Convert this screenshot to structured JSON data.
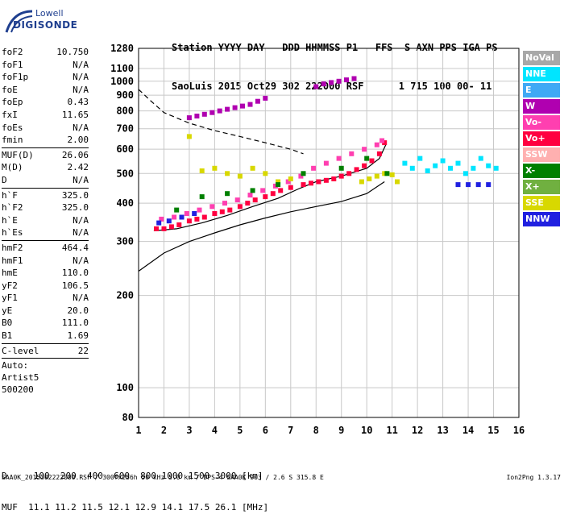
{
  "logo": {
    "line1": "Lowell",
    "line2": "DIGISONDE"
  },
  "header": {
    "line1": "Station YYYY DAY   DDD HHMMSS P1   FFS  S AXN PPS IGA PS",
    "line2": "SaoLuis 2015 Oct29 302 222000 RSF      1 715 100 00- 11"
  },
  "params_group1": [
    {
      "label": "foF2",
      "value": "10.750"
    },
    {
      "label": "foF1",
      "value": "N/A"
    },
    {
      "label": "foF1p",
      "value": "N/A"
    },
    {
      "label": "foE",
      "value": "N/A"
    },
    {
      "label": "foEp",
      "value": "0.43"
    },
    {
      "label": "fxI",
      "value": "11.65"
    },
    {
      "label": "foEs",
      "value": "N/A"
    },
    {
      "label": "fmin",
      "value": "2.00"
    }
  ],
  "params_group2": [
    {
      "label": "MUF(D)",
      "value": "26.06"
    },
    {
      "label": "M(D)",
      "value": "2.42"
    },
    {
      "label": "D",
      "value": "N/A"
    }
  ],
  "params_group3": [
    {
      "label": "h`F",
      "value": "325.0"
    },
    {
      "label": "h`F2",
      "value": "325.0"
    },
    {
      "label": "h`E",
      "value": "N/A"
    },
    {
      "label": "h`Es",
      "value": "N/A"
    }
  ],
  "params_group4": [
    {
      "label": "hmF2",
      "value": "464.4"
    },
    {
      "label": "hmF1",
      "value": "N/A"
    },
    {
      "label": "hmE",
      "value": "110.0"
    },
    {
      "label": "yF2",
      "value": "106.5"
    },
    {
      "label": "yF1",
      "value": "N/A"
    },
    {
      "label": "yE",
      "value": "20.0"
    },
    {
      "label": "B0",
      "value": "111.0"
    },
    {
      "label": "B1",
      "value": "1.69"
    }
  ],
  "params_group5": [
    {
      "label": "C-level",
      "value": "22"
    }
  ],
  "auto": {
    "line1": "Auto:",
    "line2": "Artist5",
    "line3": "500200"
  },
  "legend": [
    {
      "label": "NoVal",
      "color": "#a8a8a8"
    },
    {
      "label": "NNE",
      "color": "#00e5ff"
    },
    {
      "label": "E",
      "color": "#3fa9f5"
    },
    {
      "label": "W",
      "color": "#b000b0"
    },
    {
      "label": "Vo-",
      "color": "#ff3fb0"
    },
    {
      "label": "Vo+",
      "color": "#ff0040"
    },
    {
      "label": "SSW",
      "color": "#ffb0b0"
    },
    {
      "label": "X-",
      "color": "#008000"
    },
    {
      "label": "X+",
      "color": "#70b040"
    },
    {
      "label": "SSE",
      "color": "#d8d800"
    },
    {
      "label": "NNW",
      "color": "#2020e0"
    }
  ],
  "footer": {
    "line1": "D     100  200  400  600  800 1000 1500 3000 [km]",
    "line2": "MUF  11.1 11.2 11.5 12.1 12.9 14.1 17.5 26.1 [MHz]",
    "line3": "SAA0K_2015302222000.RSF / 300fx256h 50 kHz 5.0 km / DPS-4 SAA0K 903 / 2.6 S 315.8 E",
    "version": "Ion2Png 1.3.17"
  },
  "chart_data": {
    "type": "scatter",
    "xlim": [
      1,
      16
    ],
    "ylim": [
      80,
      1280
    ],
    "yscale": "log",
    "xticks": [
      "1",
      "2",
      "3",
      "4",
      "5",
      "6",
      "7",
      "8",
      "9",
      "10",
      "11",
      "12",
      "13",
      "14",
      "15",
      "16"
    ],
    "yticks": [
      "80",
      "100",
      "200",
      "300",
      "400",
      "500",
      "600",
      "700",
      "800",
      "900",
      "1000",
      "1100",
      "1280"
    ],
    "grid": true,
    "curves": [
      {
        "name": "",
        "style": "dashed",
        "x": [
          1.0,
          1.5,
          2.0,
          3.0,
          4.0,
          5.0,
          6.0,
          7.0,
          7.5
        ],
        "y": [
          940,
          860,
          790,
          730,
          690,
          660,
          630,
          600,
          580
        ]
      },
      {
        "name": "",
        "style": "solid",
        "x": [
          1.0,
          2.0,
          3.0,
          4.0,
          5.0,
          6.0,
          7.0,
          8.0,
          9.0,
          10.0,
          10.7
        ],
        "y": [
          240,
          275,
          300,
          320,
          340,
          358,
          375,
          390,
          405,
          430,
          470
        ]
      },
      {
        "name": "",
        "style": "solid",
        "x": [
          1.6,
          2.5,
          3.5,
          4.5,
          5.5,
          6.5,
          7.3,
          8.0,
          9.0,
          10.0,
          10.5,
          10.75
        ],
        "y": [
          325,
          330,
          345,
          365,
          390,
          415,
          445,
          470,
          490,
          520,
          560,
          620
        ]
      }
    ],
    "series": [
      {
        "name": "Vo+",
        "color": "#ff0040",
        "x": [
          1.7,
          2.0,
          2.3,
          2.6,
          3.0,
          3.3,
          3.6,
          4.0,
          4.3,
          4.6,
          5.0,
          5.3,
          5.6,
          6.0,
          6.3,
          6.6,
          7.0,
          7.5,
          7.8,
          8.1,
          8.4,
          8.7,
          9.0,
          9.3,
          9.6,
          9.9,
          10.2,
          10.5,
          10.7
        ],
        "y": [
          330,
          330,
          335,
          340,
          350,
          355,
          360,
          370,
          375,
          380,
          390,
          400,
          410,
          420,
          430,
          440,
          450,
          460,
          465,
          470,
          475,
          480,
          490,
          500,
          515,
          530,
          550,
          580,
          630
        ]
      },
      {
        "name": "Vo-",
        "color": "#ff3fb0",
        "x": [
          1.9,
          2.4,
          2.9,
          3.4,
          3.9,
          4.4,
          4.9,
          5.4,
          5.9,
          6.4,
          6.9,
          7.4,
          7.9,
          8.4,
          8.9,
          9.4,
          9.9,
          10.4,
          10.6
        ],
        "y": [
          355,
          360,
          370,
          380,
          390,
          400,
          410,
          425,
          440,
          455,
          470,
          490,
          520,
          540,
          560,
          580,
          600,
          620,
          640
        ]
      },
      {
        "name": "W",
        "color": "#b000b0",
        "x": [
          3.0,
          3.3,
          3.6,
          3.9,
          4.2,
          4.5,
          4.8,
          5.1,
          5.4,
          5.7,
          6.0,
          8.0,
          8.3,
          8.6,
          8.9,
          9.2,
          9.5
        ],
        "y": [
          760,
          770,
          780,
          790,
          800,
          810,
          820,
          830,
          840,
          860,
          880,
          960,
          980,
          990,
          1000,
          1010,
          1020
        ]
      },
      {
        "name": "SSE",
        "color": "#d8d800",
        "x": [
          3.0,
          3.5,
          4.0,
          4.5,
          5.0,
          5.5,
          6.0,
          6.5,
          7.0,
          9.8,
          10.1,
          10.4,
          10.7,
          11.0,
          11.2
        ],
        "y": [
          660,
          510,
          520,
          500,
          490,
          520,
          500,
          470,
          480,
          470,
          480,
          490,
          500,
          495,
          470
        ]
      },
      {
        "name": "NNE",
        "color": "#00e5ff",
        "x": [
          11.5,
          11.8,
          12.1,
          12.4,
          12.7,
          13.0,
          13.3,
          13.6,
          13.9,
          14.2,
          14.5,
          14.8,
          15.1
        ],
        "y": [
          540,
          520,
          560,
          510,
          530,
          550,
          520,
          540,
          500,
          520,
          560,
          530,
          520
        ]
      },
      {
        "name": "X-",
        "color": "#008000",
        "x": [
          2.5,
          3.5,
          4.5,
          5.5,
          6.5,
          7.5,
          9.0,
          10.0,
          10.8
        ],
        "y": [
          380,
          420,
          430,
          440,
          460,
          500,
          520,
          560,
          500
        ]
      },
      {
        "name": "NNW",
        "color": "#2020e0",
        "x": [
          1.8,
          2.2,
          2.7,
          3.2,
          13.6,
          14.0,
          14.4,
          14.8
        ],
        "y": [
          345,
          350,
          360,
          370,
          460,
          460,
          460,
          460
        ]
      }
    ]
  }
}
